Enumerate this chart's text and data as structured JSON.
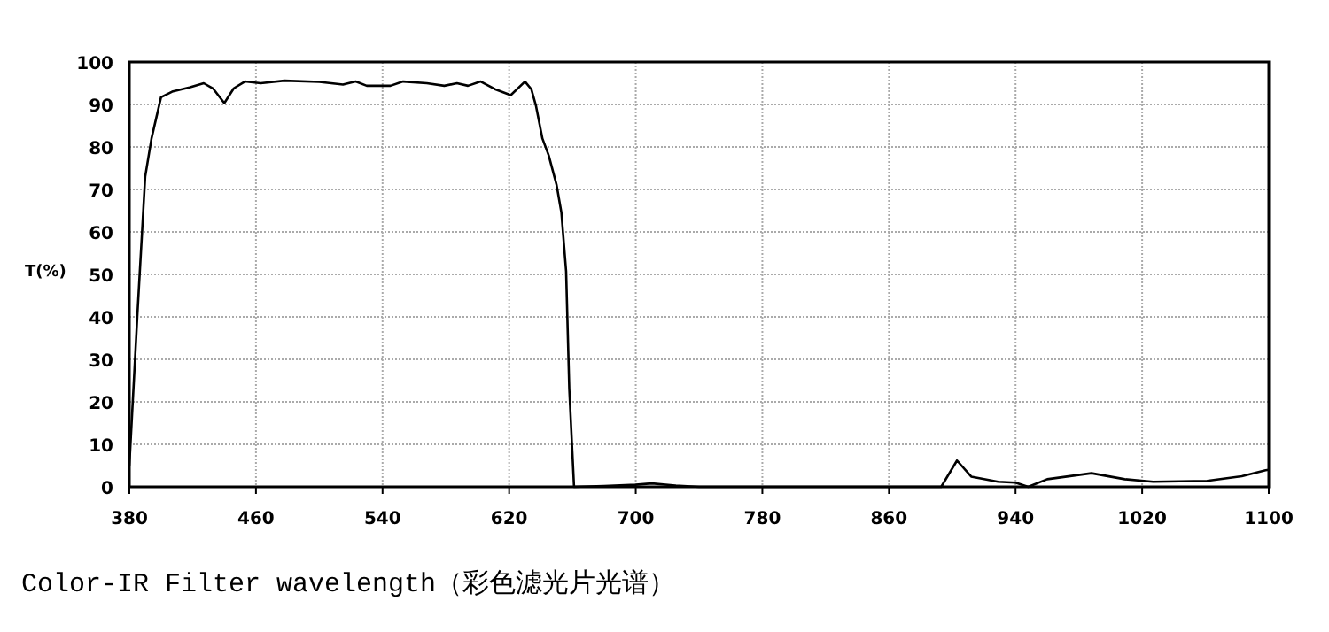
{
  "chart_data": {
    "type": "line",
    "title": "Color-IR Filter wavelength（彩色滤光片光谱）",
    "ylabel": "T(%)",
    "xlim": [
      380,
      1100
    ],
    "xticks": [
      380,
      460,
      540,
      620,
      700,
      780,
      860,
      940,
      1020,
      1100
    ],
    "ylim": [
      0,
      100
    ],
    "yticks": [
      0,
      10,
      20,
      30,
      40,
      50,
      60,
      70,
      80,
      90,
      100
    ],
    "grid": true,
    "marker": "none",
    "line_style": "solid",
    "series": [
      {
        "color": "#000000",
        "x": [
          380,
          385,
          390,
          394,
          400,
          407,
          418,
          427,
          433,
          440,
          446,
          453,
          463,
          478,
          500,
          515,
          523,
          530,
          545,
          553,
          568,
          579,
          587,
          594,
          602,
          611,
          621,
          630,
          634,
          637,
          641,
          645,
          650,
          653,
          656,
          658,
          661,
          680,
          700,
          710,
          725,
          740,
          780,
          890,
          893,
          903,
          912,
          929,
          940,
          948,
          960,
          988,
          1009,
          1027,
          1061,
          1083,
          1098,
          1100
        ],
        "values": [
          5,
          40,
          73,
          82,
          91.7,
          93,
          94,
          95,
          93.7,
          90.3,
          93.8,
          95.4,
          95,
          95.6,
          95.3,
          94.7,
          95.4,
          94.4,
          94.4,
          95.4,
          95,
          94.4,
          95,
          94.4,
          95.4,
          93.6,
          92.2,
          95.4,
          93.6,
          89.6,
          82,
          78,
          71,
          64.6,
          50.7,
          23,
          0,
          0.2,
          0.5,
          0.8,
          0.3,
          0,
          0,
          0,
          0,
          6.2,
          2.4,
          1.2,
          1,
          0,
          1.8,
          3.2,
          1.8,
          1.2,
          1.4,
          2.5,
          3.9,
          4
        ]
      }
    ]
  }
}
